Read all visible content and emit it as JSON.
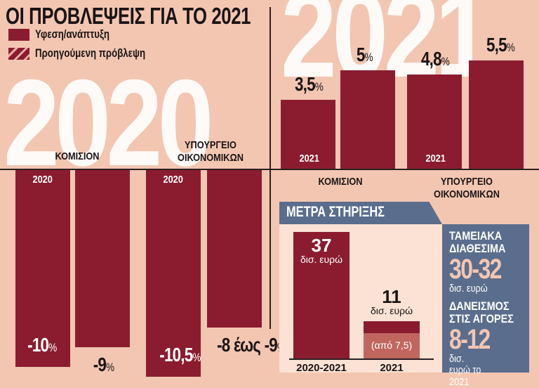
{
  "title": "ΟΙ ΠΡΟΒΛΕΨΕΙΣ ΓΙΑ ΤΟ 2021",
  "legend": [
    {
      "label": "Υφεση/ανάπτυξη",
      "style": "solid"
    },
    {
      "label": "Προηγούμενη πρόβλεψη",
      "style": "hatched"
    }
  ],
  "colors": {
    "bar": "#8b1c30",
    "background": "#f3c6b2",
    "panel": "#5a6d8c",
    "light_bar": "#c1665f"
  },
  "chart_data": [
    {
      "type": "bar",
      "title": "2020",
      "groups": [
        "ΚΟΜΙΣΙΟΝ",
        "ΥΠΟΥΡΓΕΙΟ ΟΙΚΟΝΟΜΙΚΩΝ"
      ],
      "bar_year_label": "2020",
      "series": [
        {
          "name": "Υφεση/ανάπτυξη",
          "values": [
            -10,
            -10.5
          ],
          "labels": [
            "-10",
            "-10,5"
          ]
        },
        {
          "name": "Προηγούμενη πρόβλεψη",
          "values": [
            -9,
            -8
          ],
          "labels": [
            "-9",
            "-8 έως -9"
          ]
        }
      ],
      "unit": "%"
    },
    {
      "type": "bar",
      "title": "2021",
      "groups": [
        "ΚΟΜΙΣΙΟΝ",
        "ΥΠΟΥΡΓΕΙΟ ΟΙΚΟΝΟΜΙΚΩΝ"
      ],
      "bar_year_label": "2021",
      "series": [
        {
          "name": "Υφεση/ανάπτυξη",
          "values": [
            3.5,
            4.8
          ],
          "labels": [
            "3,5",
            "4,8"
          ]
        },
        {
          "name": "Προηγούμενη πρόβλεψη",
          "values": [
            5,
            5.5
          ],
          "labels": [
            "5",
            "5,5"
          ]
        }
      ],
      "unit": "%"
    },
    {
      "type": "bar",
      "title": "ΜΕΤΡΑ ΣΤΗΡΙΞΗΣ",
      "categories": [
        "2020-2021",
        "2021"
      ],
      "values": [
        37,
        11
      ],
      "labels": [
        "37",
        "11"
      ],
      "unit": "δισ. ευρώ",
      "sub_values": [
        null,
        7.5
      ],
      "sub_label": "(από 7,5)"
    }
  ],
  "side": {
    "cash_title": "ΤΑΜΕΙΑΚΑ ΔΙΑΘΕΣΙΜΑ",
    "cash_value": "30-32",
    "cash_unit": "δισ. ευρώ",
    "borrow_title": "ΔΑΝΕΙΣΜΟΣ ΣΤΙΣ ΑΓΟΡΕΣ",
    "borrow_value": "8-12",
    "borrow_unit": "δισ. ευρώ το 2021"
  }
}
